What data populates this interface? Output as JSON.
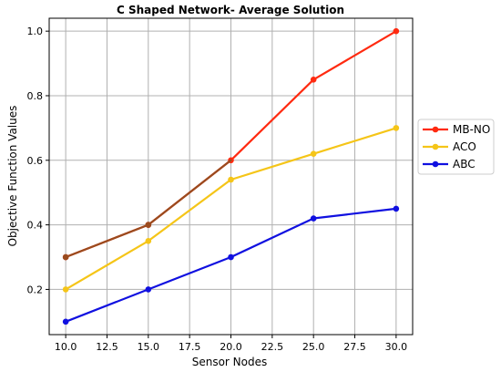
{
  "chart_data": {
    "type": "line",
    "title": "C Shaped Network- Average Solution",
    "xlabel": "Sensor Nodes",
    "ylabel": "Objective Function Values",
    "x": [
      10,
      15,
      20,
      25,
      30
    ],
    "xlim": [
      9.0,
      31.0
    ],
    "ylim": [
      0.06,
      1.04
    ],
    "xticks": [
      "10.0",
      "12.5",
      "15.0",
      "17.5",
      "20.0",
      "22.5",
      "25.0",
      "27.5",
      "30.0"
    ],
    "yticks": [
      "0.2",
      "0.4",
      "0.6",
      "0.8",
      "1.0"
    ],
    "grid": true,
    "legend_position": "right",
    "series": [
      {
        "name": "MB-NO",
        "color": "#ff2a10",
        "values": [
          0.3,
          0.4,
          0.6,
          0.85,
          1.0
        ]
      },
      {
        "name": "ACO",
        "color": "#f5c518",
        "values": [
          0.2,
          0.35,
          0.54,
          0.62,
          0.7
        ]
      },
      {
        "name": "ABC",
        "color": "#1010e0",
        "values": [
          0.1,
          0.2,
          0.3,
          0.42,
          0.45
        ]
      }
    ],
    "overlap_color": "#9a4b1e"
  }
}
